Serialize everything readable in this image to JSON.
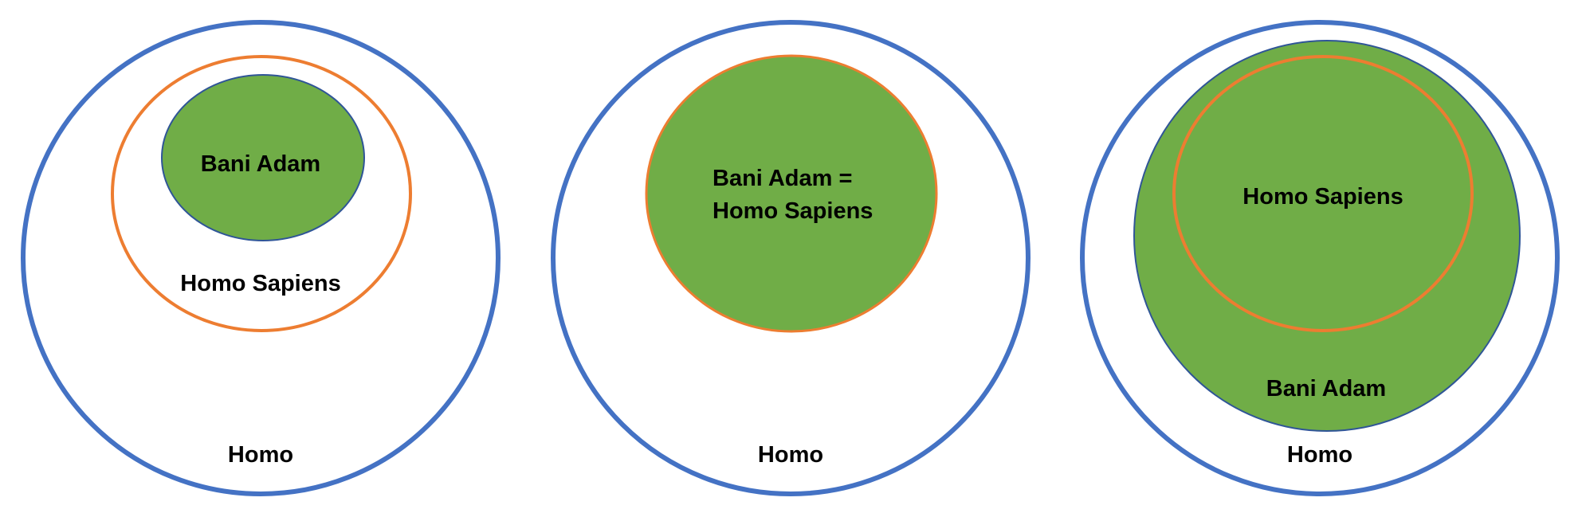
{
  "colors": {
    "homo_outline": "#4472C4",
    "sapiens_outline": "#ED7D31",
    "bani_adam_fill": "#70AD47",
    "bani_adam_outline": "#2F5597"
  },
  "diagrams": [
    {
      "homo": "Homo",
      "homo_sapiens": "Homo Sapiens",
      "bani_adam": "Bani Adam"
    },
    {
      "homo": "Homo",
      "merged_line1": "Bani Adam =",
      "merged_line2": "Homo Sapiens"
    },
    {
      "homo": "Homo",
      "homo_sapiens": "Homo Sapiens",
      "bani_adam": "Bani Adam"
    }
  ]
}
